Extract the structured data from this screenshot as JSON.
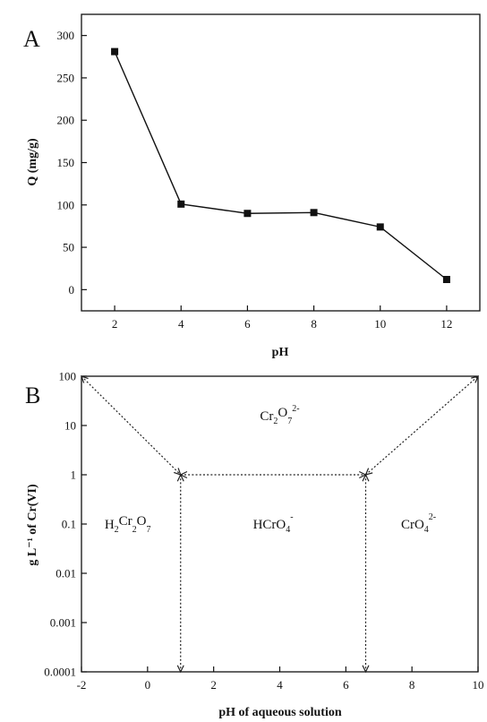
{
  "chart_data": [
    {
      "panel": "A",
      "type": "line",
      "xlabel": "pH",
      "ylabel": "Q (mg/g)",
      "xlim": [
        1,
        13
      ],
      "ylim": [
        -25,
        325
      ],
      "xticks": [
        2,
        4,
        6,
        8,
        10,
        12
      ],
      "yticks": [
        0,
        50,
        100,
        150,
        200,
        250,
        300
      ],
      "x": [
        2,
        4,
        6,
        8,
        10,
        12
      ],
      "series": [
        {
          "values": [
            281,
            101,
            90,
            91,
            74,
            12
          ],
          "marker": "square",
          "color": "#111111"
        }
      ]
    },
    {
      "panel": "B",
      "type": "diagram",
      "xlabel": "pH of aqueous solution",
      "ylabel": "g L⁻¹ of Cr(VI)",
      "xlim": [
        -2,
        10
      ],
      "ylim": [
        0.0001,
        100
      ],
      "yscale": "log",
      "xticks": [
        -2,
        0,
        2,
        4,
        6,
        8,
        10
      ],
      "yticks": [
        {
          "value": 100,
          "label": "100"
        },
        {
          "value": 10,
          "label": "10"
        },
        {
          "value": 1,
          "label": "1"
        },
        {
          "value": 0.1,
          "label": "0.1"
        },
        {
          "value": 0.01,
          "label": "0.01"
        },
        {
          "value": 0.001,
          "label": "0.001"
        },
        {
          "value": 0.0001,
          "label": "0.0001"
        }
      ],
      "boundaries": [
        {
          "from": [
            -2,
            100
          ],
          "to": [
            1,
            1
          ]
        },
        {
          "from": [
            1,
            1
          ],
          "to": [
            6.6,
            1
          ]
        },
        {
          "from": [
            1,
            1
          ],
          "to": [
            1,
            0.0001
          ]
        },
        {
          "from": [
            6.6,
            1
          ],
          "to": [
            6.6,
            0.0001
          ]
        },
        {
          "from": [
            6.6,
            1
          ],
          "to": [
            10,
            100
          ]
        }
      ],
      "regions": [
        {
          "id": "cr2o7",
          "main": "Cr",
          "sub1": "2",
          "mid": "O",
          "sub2": "7",
          "sup": "2-",
          "x": 4,
          "y": 16
        },
        {
          "id": "h2cr2o7",
          "main": "H",
          "sub1": "2",
          "mid": "Cr",
          "sub2": "2",
          "tail": "O",
          "sub3": "7",
          "x": -0.6,
          "y": 0.1
        },
        {
          "id": "hcro4",
          "main": "HCrO",
          "sub1": "4",
          "sup": "-",
          "x": 3.8,
          "y": 0.1
        },
        {
          "id": "cro4",
          "main": "CrO",
          "sub1": "4",
          "sup": "2-",
          "x": 8.2,
          "y": 0.1
        }
      ]
    }
  ]
}
